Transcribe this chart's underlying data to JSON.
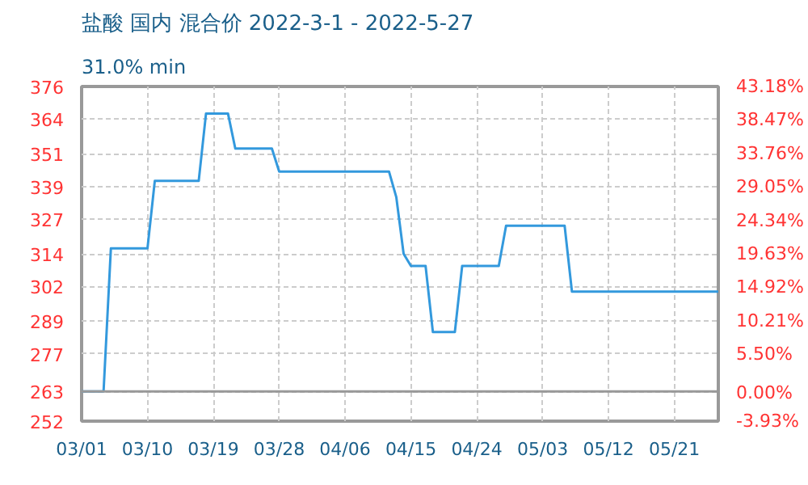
{
  "chart_data": {
    "type": "step",
    "title": "盐酸 国内 混合价 2022-3-1 - 2022-5-27",
    "subtitle": "31.0% min",
    "x": [
      "2022-03-01",
      "2022-03-04",
      "2022-03-05",
      "2022-03-10",
      "2022-03-11",
      "2022-03-17",
      "2022-03-18",
      "2022-03-21",
      "2022-03-22",
      "2022-03-27",
      "2022-03-28",
      "2022-04-12",
      "2022-04-13",
      "2022-04-14",
      "2022-04-15",
      "2022-04-17",
      "2022-04-18",
      "2022-04-21",
      "2022-04-22",
      "2022-04-27",
      "2022-04-28",
      "2022-05-06",
      "2022-05-07",
      "2022-05-27"
    ],
    "series": [
      {
        "color": "#3399dd",
        "values": [
          263,
          263,
          316,
          316,
          341,
          341,
          366,
          366,
          353,
          353,
          344.5,
          344.5,
          335,
          314,
          309.5,
          309.5,
          285,
          285,
          309.5,
          309.5,
          324.4,
          324.4,
          300,
          300
        ]
      }
    ],
    "xlim": [
      "2022-03-01",
      "2022-05-27"
    ],
    "xticks": [
      {
        "value": "2022-03-01",
        "label": "03/01"
      },
      {
        "value": "2022-03-10",
        "label": "03/10"
      },
      {
        "value": "2022-03-19",
        "label": "03/19"
      },
      {
        "value": "2022-03-28",
        "label": "03/28"
      },
      {
        "value": "2022-04-06",
        "label": "04/06"
      },
      {
        "value": "2022-04-15",
        "label": "04/15"
      },
      {
        "value": "2022-04-24",
        "label": "04/24"
      },
      {
        "value": "2022-05-03",
        "label": "05/03"
      },
      {
        "value": "2022-05-12",
        "label": "05/12"
      },
      {
        "value": "2022-05-21",
        "label": "05/21"
      }
    ],
    "ylim": [
      252,
      376
    ],
    "yticks": [
      252,
      263,
      277,
      289,
      302,
      314,
      327,
      339,
      351,
      364,
      376
    ],
    "y2lim": [
      -3.93,
      43.18
    ],
    "y2ticks": [
      {
        "value": -3.93,
        "label": "-3.93%"
      },
      {
        "value": 0,
        "label": "0.00%"
      },
      {
        "value": 5.5,
        "label": "5.50%"
      },
      {
        "value": 10.21,
        "label": "10.21%"
      },
      {
        "value": 14.92,
        "label": "14.92%"
      },
      {
        "value": 19.63,
        "label": "19.63%"
      },
      {
        "value": 24.34,
        "label": "24.34%"
      },
      {
        "value": 29.05,
        "label": "29.05%"
      },
      {
        "value": 33.76,
        "label": "33.76%"
      },
      {
        "value": 38.47,
        "label": "38.47%"
      },
      {
        "value": 43.18,
        "label": "43.18%"
      }
    ],
    "ref_lines": [
      {
        "axis": "y",
        "value": 263,
        "color": "#999999"
      }
    ],
    "grid": true,
    "line_style": "solid"
  }
}
